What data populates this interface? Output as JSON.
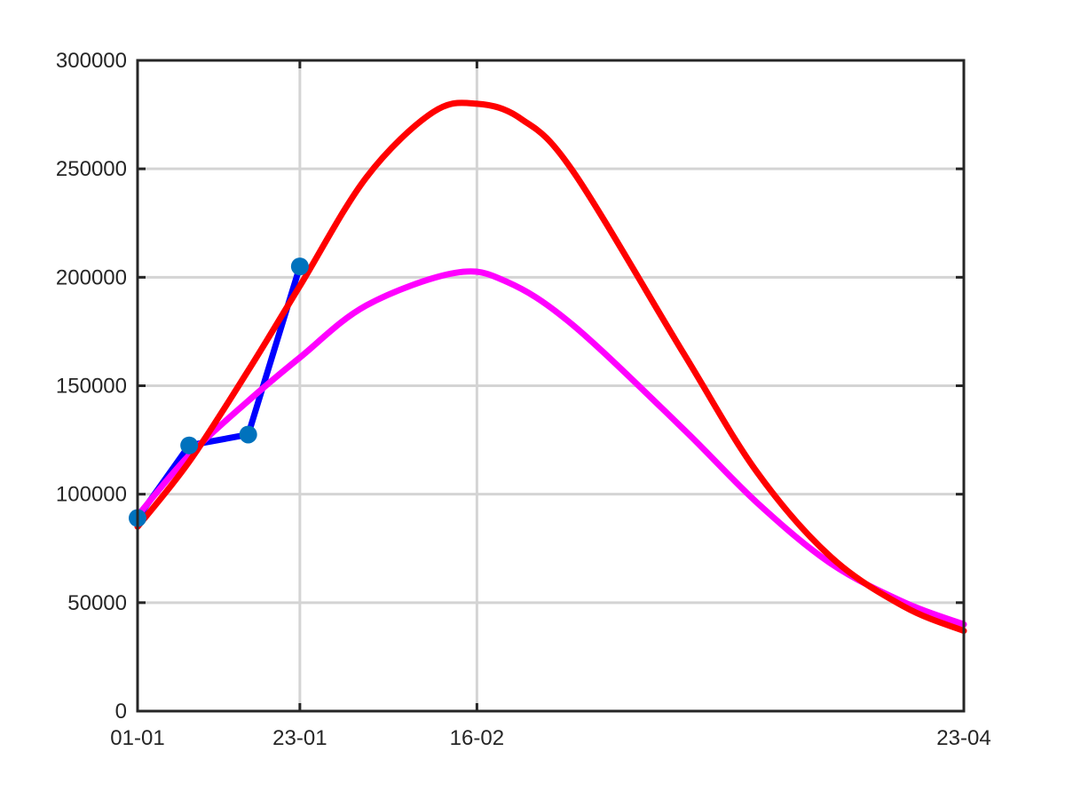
{
  "chart_data": {
    "type": "line",
    "title": "",
    "xlabel": "",
    "ylabel": "",
    "grid": true,
    "xlim": [
      "01-01",
      "23-04"
    ],
    "ylim": [
      0,
      300000
    ],
    "x_ticks": [
      {
        "date": "01-01",
        "label": "01-01"
      },
      {
        "date": "23-01",
        "label": "23-01"
      },
      {
        "date": "16-02",
        "label": "16-02"
      },
      {
        "date": "23-04",
        "label": "23-04"
      }
    ],
    "y_ticks": [
      0,
      50000,
      100000,
      150000,
      200000,
      250000,
      300000
    ],
    "y_tick_labels": [
      "0",
      "50000",
      "100000",
      "150000",
      "200000",
      "250000",
      "300000"
    ],
    "series": [
      {
        "color": "#0000ff",
        "marker_color": "#0072bd",
        "markers": true,
        "points": [
          {
            "x": "01-01",
            "y": 89000
          },
          {
            "x": "08-01",
            "y": 122500
          },
          {
            "x": "16-01",
            "y": 127500
          },
          {
            "x": "23-01",
            "y": 205000
          }
        ]
      },
      {
        "color": "#ff00ff",
        "markers": false,
        "points": [
          {
            "x": "01-01",
            "y": 90000
          },
          {
            "x": "08-01",
            "y": 118000
          },
          {
            "x": "16-01",
            "y": 143000
          },
          {
            "x": "23-01",
            "y": 163000
          },
          {
            "x": "01-02",
            "y": 187000
          },
          {
            "x": "13-02",
            "y": 202000
          },
          {
            "x": "20-02",
            "y": 198000
          },
          {
            "x": "01-03",
            "y": 178000
          },
          {
            "x": "16-03",
            "y": 130000
          },
          {
            "x": "26-03",
            "y": 96000
          },
          {
            "x": "05-04",
            "y": 68000
          },
          {
            "x": "15-04",
            "y": 50000
          },
          {
            "x": "23-04",
            "y": 40000
          }
        ]
      },
      {
        "color": "#ff0000",
        "markers": false,
        "points": [
          {
            "x": "01-01",
            "y": 85000
          },
          {
            "x": "08-01",
            "y": 115000
          },
          {
            "x": "16-01",
            "y": 157000
          },
          {
            "x": "23-01",
            "y": 196000
          },
          {
            "x": "01-02",
            "y": 246000
          },
          {
            "x": "10-02",
            "y": 276000
          },
          {
            "x": "16-02",
            "y": 280000
          },
          {
            "x": "22-02",
            "y": 273000
          },
          {
            "x": "01-03",
            "y": 249000
          },
          {
            "x": "16-03",
            "y": 165000
          },
          {
            "x": "26-03",
            "y": 110000
          },
          {
            "x": "05-04",
            "y": 71000
          },
          {
            "x": "15-04",
            "y": 48000
          },
          {
            "x": "23-04",
            "y": 37000
          }
        ]
      }
    ]
  }
}
